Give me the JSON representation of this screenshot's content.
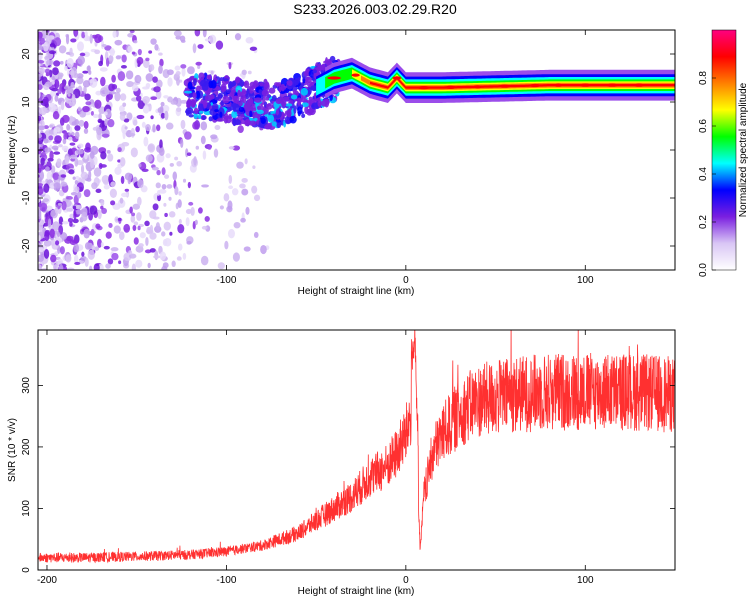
{
  "figure": {
    "title": "S233.2026.003.02.29.R20"
  },
  "chart_data": [
    {
      "type": "heatmap",
      "xlabel": "Height of straight line (km)",
      "ylabel": "Frequency (Hz)",
      "xlim": [
        -205,
        150
      ],
      "ylim": [
        -25,
        25
      ],
      "xticks": [
        -200,
        -100,
        0,
        100
      ],
      "yticks": [
        -20,
        -10,
        0,
        10,
        20
      ],
      "colorbar": {
        "label": "Normalized spectral amplitude",
        "range": [
          0,
          1
        ],
        "ticks": [
          0.0,
          0.2,
          0.4,
          0.6,
          0.8
        ],
        "tick_labels": [
          "0.0",
          "0.2",
          "0.4",
          "0.6",
          "0.8"
        ],
        "colors": [
          "#ffffff",
          "#d9c6f5",
          "#7a1fe0",
          "#0000ff",
          "#00ffff",
          "#00ff00",
          "#ffff00",
          "#ff8000",
          "#ff0000",
          "#ff0080"
        ]
      },
      "features": {
        "noise_region_km": [
          -205,
          -100
        ],
        "tone_frequency_hz": [
          {
            "x": -110,
            "y": 11
          },
          {
            "x": -90,
            "y": 10
          },
          {
            "x": -75,
            "y": 9
          },
          {
            "x": -60,
            "y": 11
          },
          {
            "x": -50,
            "y": 13
          },
          {
            "x": -40,
            "y": 15
          },
          {
            "x": -30,
            "y": 16
          },
          {
            "x": -20,
            "y": 14
          },
          {
            "x": -10,
            "y": 13
          },
          {
            "x": -5,
            "y": 15
          },
          {
            "x": 0,
            "y": 13
          },
          {
            "x": 20,
            "y": 13
          },
          {
            "x": 80,
            "y": 13.5
          },
          {
            "x": 150,
            "y": 13.5
          }
        ]
      }
    },
    {
      "type": "line",
      "xlabel": "Height of straight line (km)",
      "ylabel": "SNR (10 * v/v)",
      "xlim": [
        -205,
        150
      ],
      "ylim": [
        0,
        390
      ],
      "xticks": [
        -200,
        -100,
        0,
        100
      ],
      "yticks": [
        0,
        100,
        200,
        300
      ],
      "series": [
        {
          "color": "#ff3030",
          "x": [
            -205,
            -180,
            -150,
            -120,
            -100,
            -80,
            -60,
            -50,
            -40,
            -30,
            -20,
            -10,
            -5,
            0,
            5,
            8,
            10,
            15,
            20,
            30,
            40,
            60,
            80,
            100,
            120,
            150
          ],
          "y": [
            20,
            20,
            22,
            25,
            30,
            40,
            60,
            80,
            100,
            120,
            150,
            170,
            190,
            220,
            280,
            30,
            120,
            190,
            220,
            255,
            275,
            285,
            290,
            290,
            290,
            285
          ]
        }
      ]
    }
  ]
}
